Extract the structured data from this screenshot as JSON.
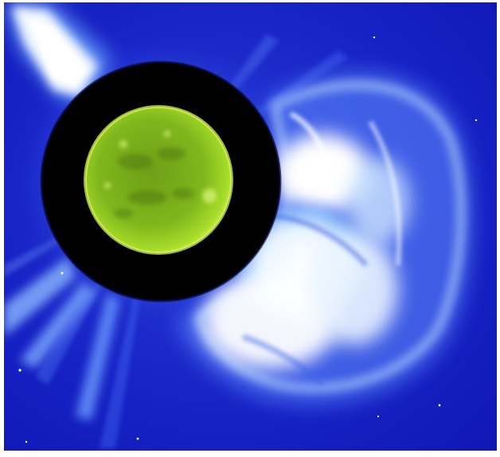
{
  "image": {
    "subject": "coronagraph-composite",
    "colors": {
      "background": "#1218c8",
      "corona_glow": "#eaf6ff",
      "streamer": "#7fb8ff",
      "occulter": "#000000",
      "sun_disk": "#8ccf1a",
      "sun_rim": "#cdf04a",
      "page": "#ffffff"
    }
  }
}
